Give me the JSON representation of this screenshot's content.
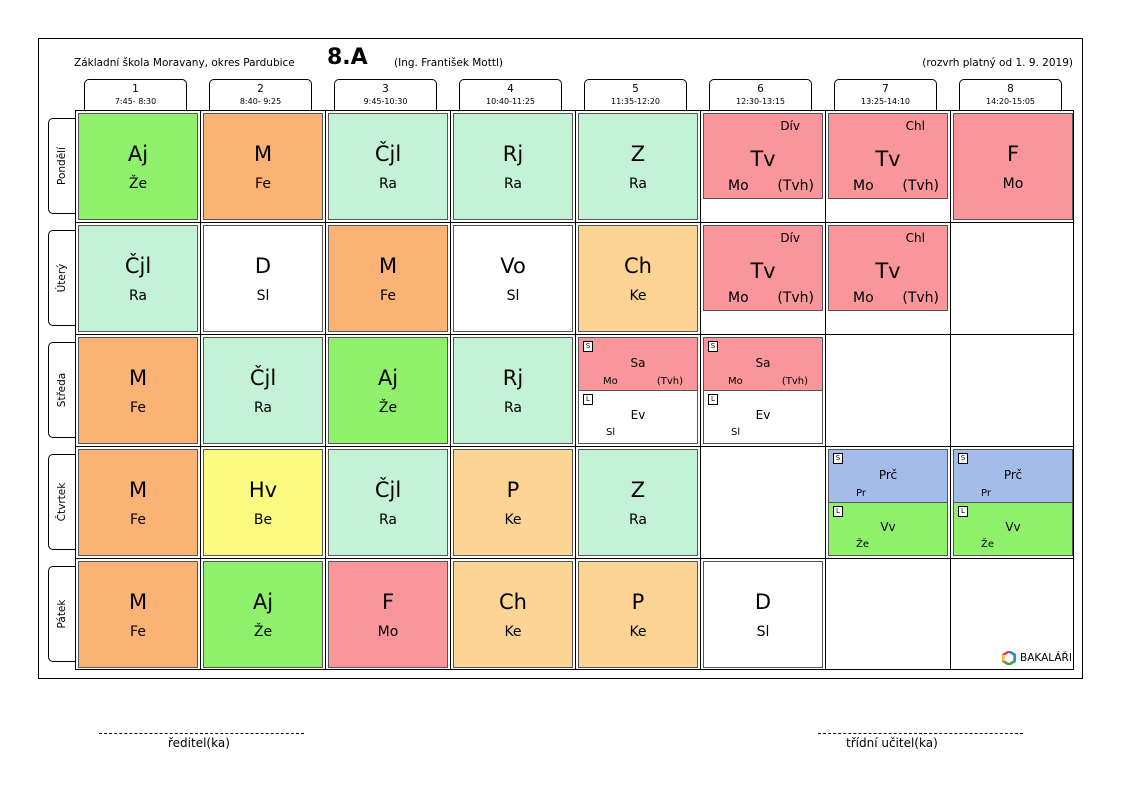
{
  "header": {
    "school": "Základní škola Moravany, okres Pardubice",
    "class_name": "8.A",
    "teacher": "(Ing. František Mottl)",
    "validity": "(rozvrh platný od 1. 9. 2019)"
  },
  "periods": [
    {
      "num": "1",
      "time": "7:45- 8:30"
    },
    {
      "num": "2",
      "time": "8:40- 9:25"
    },
    {
      "num": "3",
      "time": "9:45-10:30"
    },
    {
      "num": "4",
      "time": "10:40-11:25"
    },
    {
      "num": "5",
      "time": "11:35-12:20"
    },
    {
      "num": "6",
      "time": "12:30-13:15"
    },
    {
      "num": "7",
      "time": "13:25-14:10"
    },
    {
      "num": "8",
      "time": "14:20-15:05"
    }
  ],
  "days": [
    "Pondělí",
    "Úterý",
    "Středa",
    "Čtvrtek",
    "Pátek"
  ],
  "lessons": {
    "mon": [
      {
        "subject": "Aj",
        "teacher": "Že",
        "color": "#8ff16b"
      },
      {
        "subject": "M",
        "teacher": "Fe",
        "color": "#fbb275"
      },
      {
        "subject": "Čjl",
        "teacher": "Ra",
        "color": "#c3f2d6"
      },
      {
        "subject": "Rj",
        "teacher": "Ra",
        "color": "#c3f2d6"
      },
      {
        "subject": "Z",
        "teacher": "Ra",
        "color": "#c3f2d6"
      },
      {
        "subject": "Tv",
        "top_teacher": "Dív",
        "teacher": "Mo",
        "group": "(Tvh)",
        "color": "#f8969b"
      },
      {
        "subject": "Tv",
        "top_teacher": "Chl",
        "teacher": "Mo",
        "group": "(Tvh)",
        "color": "#f8969b"
      },
      {
        "subject": "F",
        "teacher": "Mo",
        "color": "#f8969b"
      }
    ],
    "tue": [
      {
        "subject": "Čjl",
        "teacher": "Ra",
        "color": "#c3f2d6"
      },
      {
        "subject": "D",
        "teacher": "Sl",
        "color": "#ffffff"
      },
      {
        "subject": "M",
        "teacher": "Fe",
        "color": "#fbb275"
      },
      {
        "subject": "Vo",
        "teacher": "Sl",
        "color": "#ffffff"
      },
      {
        "subject": "Ch",
        "teacher": "Ke",
        "color": "#fdd494"
      },
      {
        "subject": "Tv",
        "top_teacher": "Dív",
        "teacher": "Mo",
        "group": "(Tvh)",
        "color": "#f8969b"
      },
      {
        "subject": "Tv",
        "top_teacher": "Chl",
        "teacher": "Mo",
        "group": "(Tvh)",
        "color": "#f8969b"
      }
    ],
    "wed": [
      {
        "subject": "M",
        "teacher": "Fe",
        "color": "#fbb275"
      },
      {
        "subject": "Čjl",
        "teacher": "Ra",
        "color": "#c3f2d6"
      },
      {
        "subject": "Aj",
        "teacher": "Že",
        "color": "#8ff16b"
      },
      {
        "subject": "Rj",
        "teacher": "Ra",
        "color": "#c3f2d6"
      }
    ],
    "wed_split": [
      {
        "s_badge": "S",
        "s_subject": "Sa",
        "s_teacher": "Mo",
        "s_group": "(Tvh)",
        "l_badge": "L",
        "l_subject": "Ev",
        "l_teacher": "Sl"
      },
      {
        "s_badge": "S",
        "s_subject": "Sa",
        "s_teacher": "Mo",
        "s_group": "(Tvh)",
        "l_badge": "L",
        "l_subject": "Ev",
        "l_teacher": "Sl"
      }
    ],
    "thu": [
      {
        "subject": "M",
        "teacher": "Fe",
        "color": "#fbb275"
      },
      {
        "subject": "Hv",
        "teacher": "Be",
        "color": "#fbfb82"
      },
      {
        "subject": "Čjl",
        "teacher": "Ra",
        "color": "#c3f2d6"
      },
      {
        "subject": "P",
        "teacher": "Ke",
        "color": "#fdd494"
      },
      {
        "subject": "Z",
        "teacher": "Ra",
        "color": "#c3f2d6"
      }
    ],
    "thu_split": [
      {
        "s_badge": "S",
        "s_subject": "Prč",
        "s_teacher": "Pr",
        "l_badge": "L",
        "l_subject": "Vv",
        "l_teacher": "Že"
      },
      {
        "s_badge": "S",
        "s_subject": "Prč",
        "s_teacher": "Pr",
        "l_badge": "L",
        "l_subject": "Vv",
        "l_teacher": "Že"
      }
    ],
    "fri": [
      {
        "subject": "M",
        "teacher": "Fe",
        "color": "#fbb275"
      },
      {
        "subject": "Aj",
        "teacher": "Že",
        "color": "#8ff16b"
      },
      {
        "subject": "F",
        "teacher": "Mo",
        "color": "#f8969b"
      },
      {
        "subject": "Ch",
        "teacher": "Ke",
        "color": "#fdd494"
      },
      {
        "subject": "P",
        "teacher": "Ke",
        "color": "#fdd494"
      },
      {
        "subject": "D",
        "teacher": "Sl",
        "color": "#ffffff"
      }
    ]
  },
  "footer": {
    "logo_text": "BAKALÁŘI",
    "sig_left": "ředitel(ka)",
    "sig_right": "třídní učitel(ka)"
  }
}
